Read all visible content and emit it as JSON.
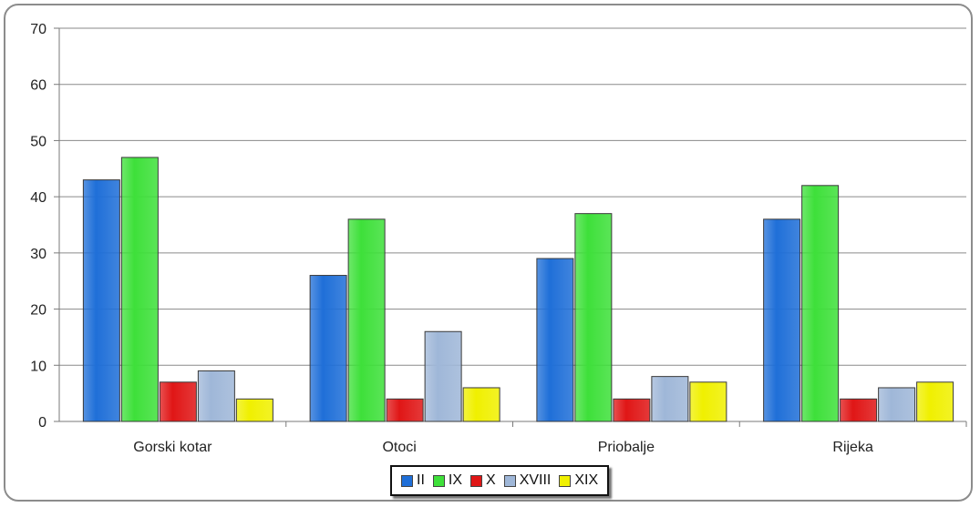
{
  "chart_data": {
    "type": "bar",
    "categories": [
      "Gorski kotar",
      "Otoci",
      "Priobalje",
      "Rijeka"
    ],
    "series": [
      {
        "name": "II",
        "color": "#1f6fd8",
        "values": [
          43,
          26,
          29,
          36
        ]
      },
      {
        "name": "IX",
        "color": "#3ee03a",
        "values": [
          47,
          36,
          37,
          42
        ]
      },
      {
        "name": "X",
        "color": "#e01616",
        "values": [
          7,
          4,
          4,
          4
        ]
      },
      {
        "name": "XVIII",
        "color": "#9fb7d8",
        "values": [
          9,
          16,
          8,
          6
        ]
      },
      {
        "name": "XIX",
        "color": "#f0f000",
        "values": [
          4,
          6,
          7,
          7
        ]
      }
    ],
    "ylim": [
      0,
      70
    ],
    "yticks": [
      0,
      10,
      20,
      30,
      40,
      50,
      60,
      70
    ],
    "grid": true,
    "legend_position": "bottom"
  }
}
